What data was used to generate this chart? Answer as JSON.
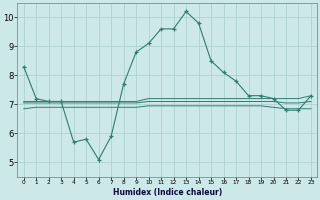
{
  "xlabel": "Humidex (Indice chaleur)",
  "x": [
    0,
    1,
    2,
    3,
    4,
    5,
    6,
    7,
    8,
    9,
    10,
    11,
    12,
    13,
    14,
    15,
    16,
    17,
    18,
    19,
    20,
    21,
    22,
    23
  ],
  "line1": [
    8.3,
    7.2,
    7.1,
    7.1,
    5.7,
    5.8,
    5.1,
    5.9,
    7.7,
    8.8,
    9.1,
    9.6,
    9.6,
    10.2,
    9.8,
    8.5,
    8.1,
    7.8,
    7.3,
    7.3,
    7.2,
    6.8,
    6.8,
    7.3
  ],
  "line2": [
    7.1,
    7.1,
    7.1,
    7.1,
    7.1,
    7.1,
    7.1,
    7.1,
    7.1,
    7.1,
    7.2,
    7.2,
    7.2,
    7.2,
    7.2,
    7.2,
    7.2,
    7.2,
    7.2,
    7.2,
    7.2,
    7.2,
    7.2,
    7.3
  ],
  "line3": [
    6.85,
    6.9,
    6.9,
    6.9,
    6.9,
    6.9,
    6.9,
    6.9,
    6.9,
    6.9,
    6.95,
    6.95,
    6.95,
    6.95,
    6.95,
    6.95,
    6.95,
    6.95,
    6.95,
    6.95,
    6.9,
    6.85,
    6.85,
    6.85
  ],
  "line4": [
    7.05,
    7.05,
    7.05,
    7.05,
    7.05,
    7.05,
    7.05,
    7.05,
    7.05,
    7.05,
    7.1,
    7.1,
    7.1,
    7.1,
    7.1,
    7.1,
    7.1,
    7.1,
    7.1,
    7.1,
    7.1,
    7.05,
    7.05,
    7.1
  ],
  "color": "#2e7d72",
  "bg_color": "#cde8e8",
  "grid_color": "#aacece",
  "ylim": [
    4.5,
    10.5
  ],
  "xlim": [
    -0.5,
    23.5
  ],
  "yticks": [
    5,
    6,
    7,
    8,
    9,
    10
  ]
}
